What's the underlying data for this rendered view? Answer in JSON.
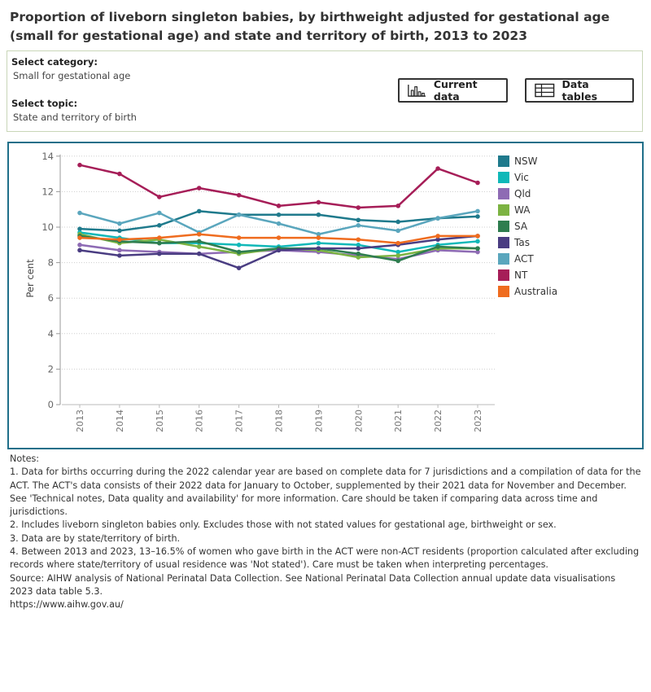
{
  "title": "Proportion of liveborn singleton babies, by birthweight adjusted for gestational age (small for gestational age) and state and territory of birth, 2013 to 2023",
  "filters": {
    "category_label": "Select category:",
    "category_value": "Small for gestational age",
    "topic_label": "Select topic:",
    "topic_value": "State and territory of birth"
  },
  "buttons": {
    "current_data": "Current data",
    "data_tables": "Data tables"
  },
  "chart_data": {
    "type": "line",
    "title": "",
    "xlabel": "",
    "ylabel": "Per cent",
    "ylim": [
      0,
      14
    ],
    "yticks": [
      0,
      2,
      4,
      6,
      8,
      10,
      12,
      14
    ],
    "x": [
      "2013",
      "2014",
      "2015",
      "2016",
      "2017",
      "2018",
      "2019",
      "2020",
      "2021",
      "2022",
      "2023"
    ],
    "grid": "horizontal dotted",
    "legend_position": "right",
    "series": [
      {
        "name": "NSW",
        "color": "#1f7a8c",
        "values": [
          9.9,
          9.8,
          10.1,
          10.9,
          10.7,
          10.7,
          10.7,
          10.4,
          10.3,
          10.5,
          10.6
        ]
      },
      {
        "name": "Vic",
        "color": "#10b8b8",
        "values": [
          9.7,
          9.4,
          9.1,
          9.1,
          9.0,
          8.9,
          9.1,
          9.0,
          8.6,
          9.0,
          9.2
        ]
      },
      {
        "name": "Qld",
        "color": "#8e6bb4",
        "values": [
          9.0,
          8.7,
          8.6,
          8.5,
          8.6,
          8.7,
          8.6,
          8.4,
          8.2,
          8.7,
          8.6
        ]
      },
      {
        "name": "WA",
        "color": "#7cb342",
        "values": [
          9.6,
          9.1,
          9.3,
          8.9,
          8.5,
          8.8,
          8.7,
          8.3,
          8.4,
          8.8,
          8.8
        ]
      },
      {
        "name": "SA",
        "color": "#2e7d4f",
        "values": [
          9.5,
          9.2,
          9.1,
          9.2,
          8.6,
          8.8,
          8.8,
          8.5,
          8.1,
          8.9,
          8.8
        ]
      },
      {
        "name": "Tas",
        "color": "#4a3d82",
        "values": [
          8.7,
          8.4,
          8.5,
          8.5,
          7.7,
          8.7,
          8.8,
          8.8,
          9.0,
          9.3,
          9.5
        ]
      },
      {
        "name": "ACT",
        "color": "#5aa6bd",
        "values": [
          10.8,
          10.2,
          10.8,
          9.7,
          10.7,
          10.2,
          9.6,
          10.1,
          9.8,
          10.5,
          10.9
        ]
      },
      {
        "name": "NT",
        "color": "#a61e58",
        "values": [
          13.5,
          13.0,
          11.7,
          12.2,
          11.8,
          11.2,
          11.4,
          11.1,
          11.2,
          13.3,
          12.5
        ]
      },
      {
        "name": "Australia",
        "color": "#ef6c1f",
        "values": [
          9.4,
          9.3,
          9.4,
          9.6,
          9.4,
          9.4,
          9.4,
          9.3,
          9.1,
          9.5,
          9.5
        ]
      }
    ]
  },
  "notes": {
    "heading": "Notes:",
    "items": [
      "1. Data for births occurring during the 2022 calendar year are based on complete data for 7 jurisdictions and a compilation of data for the ACT. The ACT's data consists of their 2022 data for January to October, supplemented by their 2021 data for November and December. See 'Technical notes, Data quality and availability' for more information. Care should be taken if comparing data across time and jurisdictions.",
      "2. Includes liveborn singleton babies only. Excludes those with not stated values for gestational age, birthweight or sex.",
      "3. Data are by state/territory of birth.",
      "4. Between 2013 and 2023, 13–16.5% of women who gave birth in the ACT were non-ACT residents (proportion calculated after excluding records where state/territory of usual residence was 'Not stated'). Care must be taken when interpreting percentages."
    ],
    "source": "Source: AIHW analysis of National Perinatal Data Collection. See National Perinatal Data Collection annual update data visualisations 2023 data table 5.3.",
    "url": "https://www.aihw.gov.au/"
  }
}
